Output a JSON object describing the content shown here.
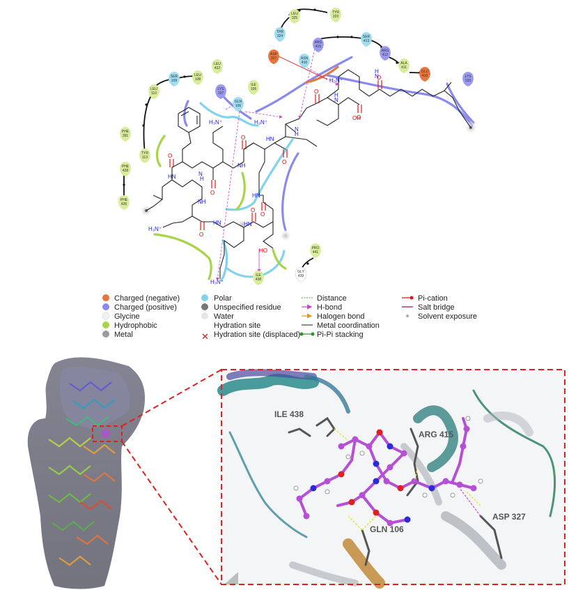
{
  "residues": [
    {
      "id": "leu325",
      "name": "LEU",
      "num": "325",
      "color": "#d8ec9a"
    },
    {
      "id": "tyr323",
      "name": "TYR",
      "num": "323",
      "color": "#d8ec9a"
    },
    {
      "id": "thr324",
      "name": "THR",
      "num": "324",
      "color": "#9fdcf0"
    },
    {
      "id": "asp327",
      "name": "ASP",
      "num": "327",
      "color": "#e8763c"
    },
    {
      "id": "arg415",
      "name": "ARG",
      "num": "415",
      "color": "#9a9af0"
    },
    {
      "id": "ser413",
      "name": "SER",
      "num": "413",
      "color": "#9fdcf0"
    },
    {
      "id": "arg412",
      "name": "ARG",
      "num": "412",
      "color": "#9a9af0"
    },
    {
      "id": "asn416",
      "name": "ASN",
      "num": "416",
      "color": "#9fdcf0"
    },
    {
      "id": "ala411",
      "name": "ALA",
      "num": "411",
      "color": "#d8ec9a"
    },
    {
      "id": "glu410",
      "name": "GLU",
      "num": "410",
      "color": "#e8763c"
    },
    {
      "id": "lys333",
      "name": "LYS",
      "num": "333",
      "color": "#9a9af0"
    },
    {
      "id": "leu422",
      "name": "LEU",
      "num": "422",
      "color": "#d8ec9a"
    },
    {
      "id": "ser109",
      "name": "SER",
      "num": "109",
      "color": "#9fdcf0"
    },
    {
      "id": "leu108",
      "name": "LEU",
      "num": "108",
      "color": "#d8ec9a"
    },
    {
      "id": "leu110",
      "name": "LEU",
      "num": "110",
      "color": "#d8ec9a"
    },
    {
      "id": "lys107",
      "name": "LYS",
      "num": "107",
      "color": "#9a9af0"
    },
    {
      "id": "gln106",
      "name": "GLN",
      "num": "106",
      "color": "#9fdcf0"
    },
    {
      "id": "ile105",
      "name": "ILE",
      "num": "105",
      "color": "#d8ec9a"
    },
    {
      "id": "phe391",
      "name": "PHE",
      "num": "391",
      "color": "#d8ec9a"
    },
    {
      "id": "tyr113",
      "name": "TYR",
      "num": "113",
      "color": "#d8ec9a"
    },
    {
      "id": "phe428",
      "name": "PHE",
      "num": "428",
      "color": "#d8ec9a"
    },
    {
      "id": "phe426",
      "name": "PHE",
      "num": "426",
      "color": "#d8ec9a"
    },
    {
      "id": "pro441",
      "name": "PRO",
      "num": "441",
      "color": "#d8ec9a"
    },
    {
      "id": "ile438",
      "name": "ILE",
      "num": "438",
      "color": "#d8ec9a"
    },
    {
      "id": "gly439",
      "name": "GLY",
      "num": "439",
      "color": "#ffffff"
    }
  ],
  "atoms": {
    "nh3_1": "H₃N⁺",
    "nh3_2": "H₃N⁺",
    "nh3_3": "H₃N⁺",
    "nh3_4": "H₃N⁺",
    "nh3_5": "H₃N⁺",
    "oh1": "OH",
    "ho1": "HO",
    "nh": "NH",
    "hn": "HN",
    "n": "N",
    "h": "H",
    "o": "O"
  },
  "legend": {
    "col1": [
      "Charged (negative)",
      "Charged (positive)",
      "Glycine",
      "Hydrophobic",
      "Metal"
    ],
    "col2": [
      "Polar",
      "Unspecified residue",
      "Water",
      "Hydration site",
      "Hydration site (displaced)"
    ],
    "col3": [
      "Distance",
      "H-bond",
      "Halogen bond",
      "Metal coordination",
      "Pi-Pi stacking"
    ],
    "col4": [
      "Pi-cation",
      "Salt bridge",
      "Solvent exposure"
    ]
  },
  "labels3d": {
    "ile438": "ILE 438",
    "arg415": "ARG 415",
    "asp327": "ASP 327",
    "gln106": "GLN 106"
  },
  "colors": {
    "negative": "#e8763c",
    "positive": "#8a8aee",
    "glycine": "#f2f2f2",
    "hydrophobic": "#a8d448",
    "metal": "#9a9a9a",
    "polar": "#7fd3ef",
    "unspecified": "#777777",
    "water": "#e6e6e6",
    "hbond": "#d040d0",
    "distance": "#33aa33",
    "halogen": "#e69a1a",
    "metalcoord": "#444444",
    "pipi": "#229922",
    "pication": "#dd1111",
    "saltbridge": "#aa2288",
    "ligand": "#b44fd6",
    "dashbox": "#e02020"
  }
}
